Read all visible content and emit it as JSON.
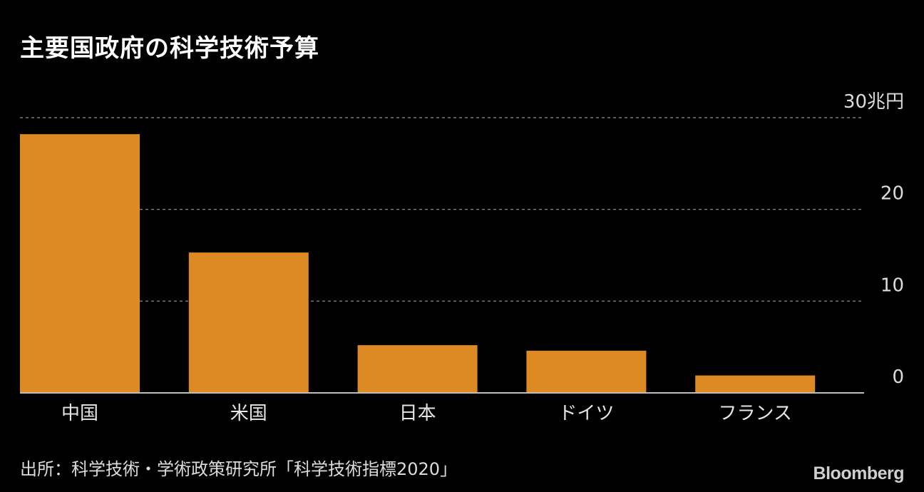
{
  "title": "主要国政府の科学技術予算",
  "source": "出所：科学技術・学術政策研究所「科学技術指標2020」",
  "brand": "Bloomberg",
  "colors": {
    "bar": "#dd8a24",
    "grid": "#7a7a7a",
    "axis": "#bdbdbd",
    "background": "#000000"
  },
  "chart_data": {
    "type": "bar",
    "categories": [
      "中国",
      "米国",
      "日本",
      "ドイツ",
      "フランス"
    ],
    "values": [
      28.2,
      15.3,
      5.2,
      4.6,
      1.9
    ],
    "ylim": [
      0,
      30
    ],
    "yticks": [
      0,
      10,
      20,
      30
    ],
    "ytick_labels": [
      "0",
      "10",
      "20",
      "30兆円"
    ],
    "grid": true
  }
}
